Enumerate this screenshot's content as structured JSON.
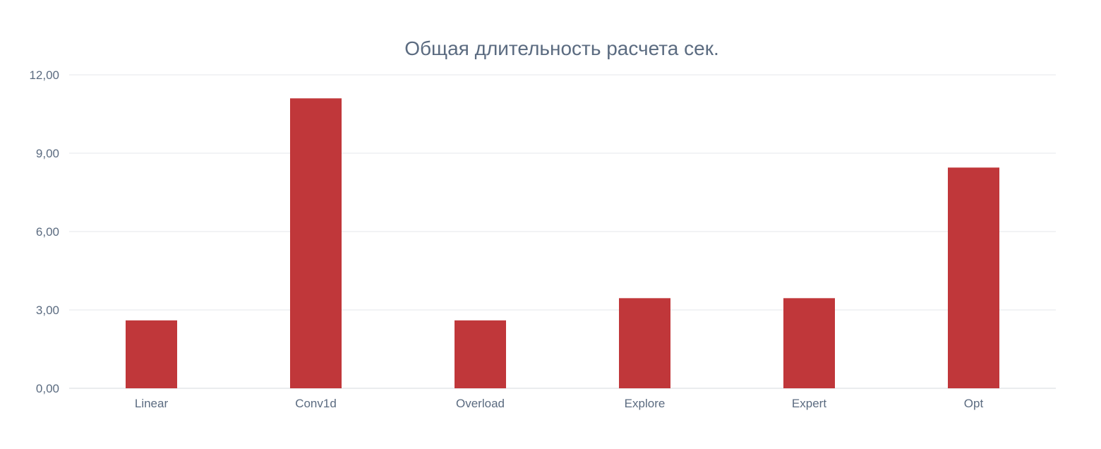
{
  "chart_data": {
    "type": "bar",
    "title": "Общая длительность расчета сек.",
    "xlabel": "",
    "ylabel": "",
    "categories": [
      "Linear",
      "Conv1d",
      "Overload",
      "Explore",
      "Expert",
      "Opt"
    ],
    "values": [
      2.6,
      11.1,
      2.6,
      3.45,
      3.45,
      8.45
    ],
    "ylim": [
      0,
      12
    ],
    "yticks": [
      0,
      3,
      6,
      9,
      12
    ],
    "ytick_labels": [
      "0,00",
      "3,00",
      "6,00",
      "9,00",
      "12,00"
    ],
    "grid": true,
    "legend": "none",
    "bar_color": "#c0373a"
  }
}
